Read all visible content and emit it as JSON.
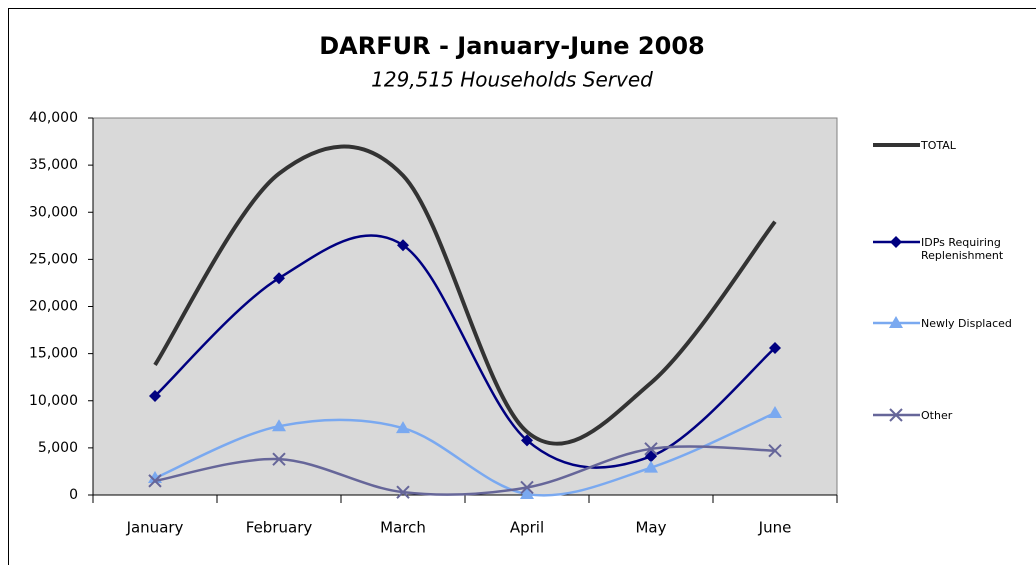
{
  "chart_data": {
    "type": "line",
    "title": "DARFUR - January-June 2008",
    "subtitle": "129,515 Households Served",
    "categories": [
      "January",
      "February",
      "March",
      "April",
      "May",
      "June"
    ],
    "series": [
      {
        "name": "TOTAL",
        "color": "#333333",
        "marker": "none",
        "values": [
          13800,
          34100,
          33900,
          6700,
          11900,
          29000
        ]
      },
      {
        "name": "IDPs Requiring Replenishment",
        "color": "#000080",
        "marker": "diamond",
        "values": [
          10500,
          23000,
          26500,
          5800,
          4100,
          15600
        ]
      },
      {
        "name": "Newly Displaced",
        "color": "#7aa9f0",
        "marker": "triangle",
        "values": [
          1800,
          7300,
          7100,
          100,
          2900,
          8700
        ]
      },
      {
        "name": "Other",
        "color": "#666699",
        "marker": "x",
        "values": [
          1500,
          3800,
          300,
          800,
          4900,
          4700
        ]
      }
    ],
    "ylim": [
      0,
      40000
    ],
    "yticks": [
      0,
      {
        "value": 5000,
        "label": "5,000"
      },
      {
        "value": 10000,
        "label": "10,000"
      },
      {
        "value": 15000,
        "label": "15,000"
      },
      {
        "value": 20000,
        "label": "20,000"
      },
      {
        "value": 25000,
        "label": "25,000"
      },
      {
        "value": 30000,
        "label": "30,000"
      },
      {
        "value": 35000,
        "label": "35,000"
      },
      {
        "value": 40000,
        "label": "40,000"
      }
    ],
    "grid": false,
    "smooth": true,
    "legend": "right",
    "plot_background": "#d9d9d9"
  }
}
